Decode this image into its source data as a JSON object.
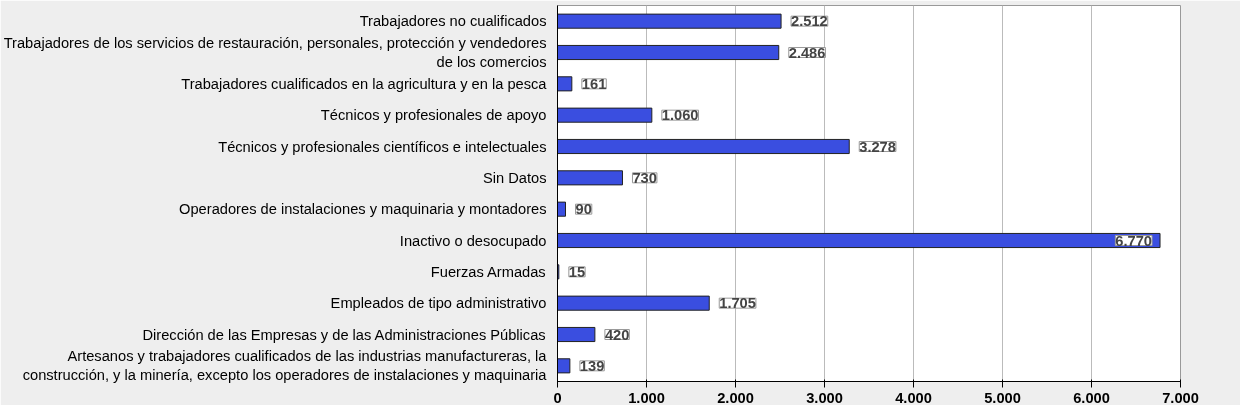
{
  "chart_data": {
    "type": "bar",
    "orientation": "horizontal",
    "categories": [
      "Trabajadores no cualificados",
      "Trabajadores de los servicios de restauración, personales, protección y vendedores de los comercios",
      "Trabajadores cualificados en la agricultura y en la pesca",
      "Técnicos y profesionales de apoyo",
      "Técnicos y profesionales científicos e intelectuales",
      "Sin Datos",
      "Operadores de instalaciones y maquinaria y montadores",
      "Inactivo o desocupado",
      "Fuerzas Armadas",
      "Empleados de tipo administrativo",
      "Dirección de las Empresas y de las Administraciones Públicas",
      "Artesanos y trabajadores cualificados de las industrias manufactureras, la construcción, y la minería, excepto los operadores de instalaciones y maquinaria"
    ],
    "values": [
      2512,
      2486,
      161,
      1060,
      3278,
      730,
      90,
      6770,
      15,
      1705,
      420,
      139
    ],
    "value_labels": [
      "2.512",
      "2.486",
      "161",
      "1.060",
      "3.278",
      "730",
      "90",
      "6.770",
      "15",
      "1.705",
      "420",
      "139"
    ],
    "color": "#3a4ee0",
    "xlim": [
      0,
      7000
    ],
    "xticks": [
      0,
      {
        "value": 1000,
        "label": "1.000"
      },
      {
        "value": 2000,
        "label": "2.000"
      },
      {
        "value": 3000,
        "label": "3.000"
      },
      {
        "value": 4000,
        "label": "4.000"
      },
      {
        "value": 5000,
        "label": "5.000"
      },
      {
        "value": 6000,
        "label": "6.000"
      },
      {
        "value": 7000,
        "label": "7.000"
      }
    ],
    "grid": "x"
  }
}
